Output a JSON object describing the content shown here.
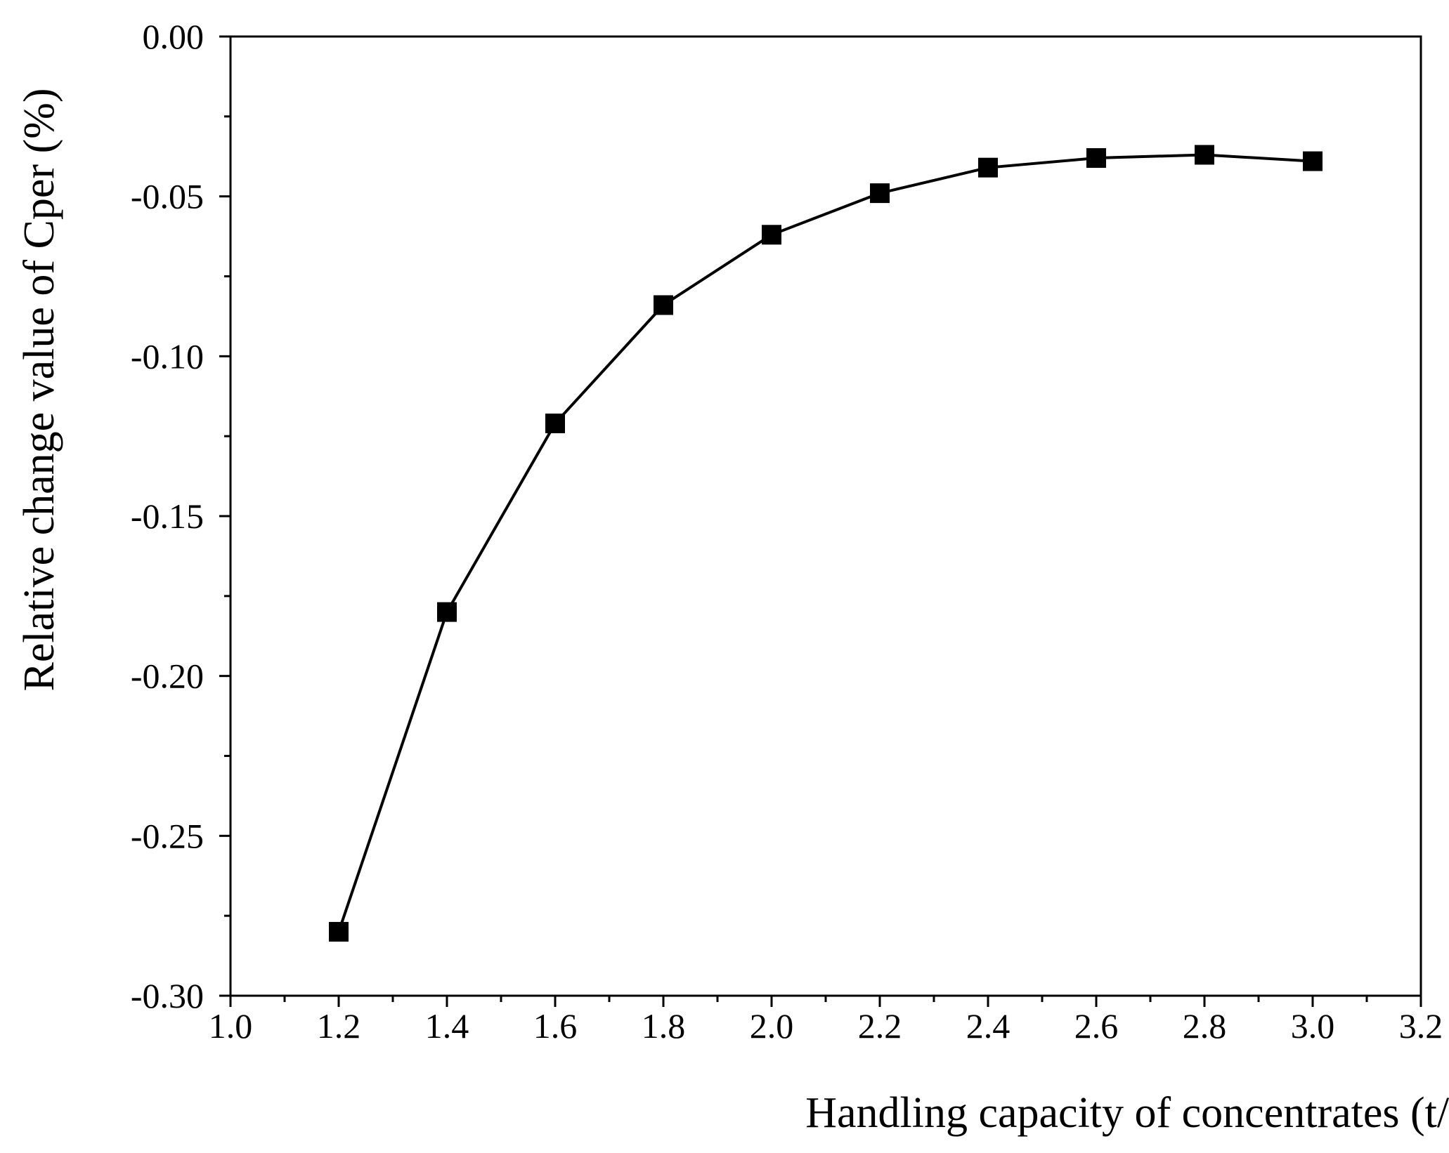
{
  "chart_data": {
    "type": "line",
    "xlabel": "Handling capacity of concentrates (t/h)",
    "ylabel": "Relative change value of  Cper (%)",
    "xlim": [
      1.0,
      3.2
    ],
    "ylim": [
      -0.3,
      0.0
    ],
    "x_ticks": [
      "1.0",
      "1.2",
      "1.4",
      "1.6",
      "1.8",
      "2.0",
      "2.2",
      "2.4",
      "2.6",
      "2.8",
      "3.0",
      "3.2"
    ],
    "y_ticks": [
      "0.00",
      "-0.05",
      "-0.10",
      "-0.15",
      "-0.20",
      "-0.25",
      "-0.30"
    ],
    "grid": false,
    "legend": "none",
    "marker": "square",
    "series": [
      {
        "x": [
          1.2,
          1.4,
          1.6,
          1.8,
          2.0,
          2.2,
          2.4,
          2.6,
          2.8,
          3.0
        ],
        "values": [
          -0.28,
          -0.18,
          -0.121,
          -0.084,
          -0.062,
          -0.049,
          -0.041,
          -0.038,
          -0.037,
          -0.039
        ]
      }
    ],
    "colors": {
      "line": "#000000",
      "marker": "#000000",
      "axis": "#000000"
    }
  }
}
